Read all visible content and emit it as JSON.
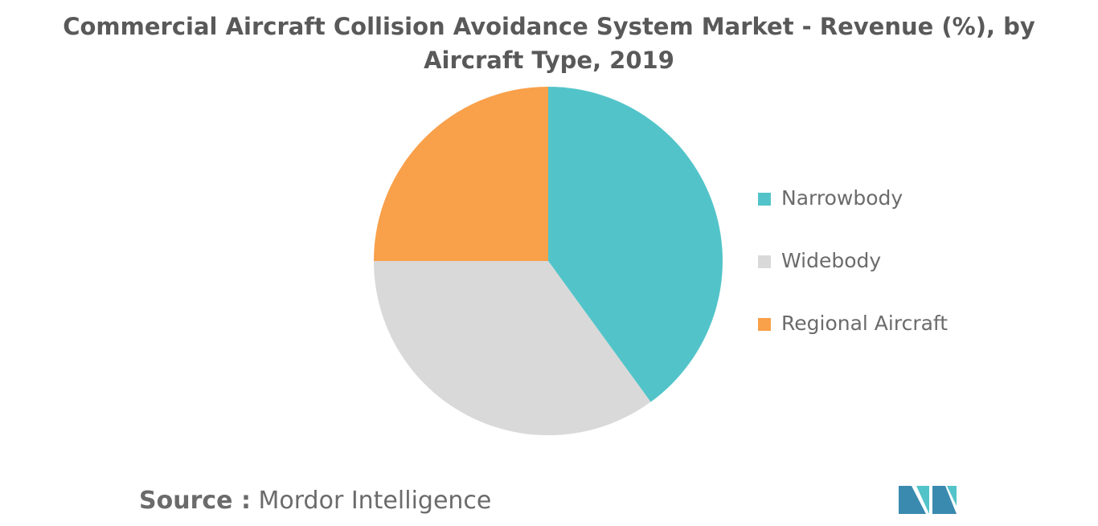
{
  "chart_data": {
    "type": "pie",
    "title": "Commercial Aircraft Collision Avoidance System Market - Revenue (%), by Aircraft Type, 2019",
    "series": [
      {
        "name": "Narrowbody",
        "color": "#52c4c9",
        "values": [
          40
        ]
      },
      {
        "name": "Widebody",
        "color": "#d9d9d9",
        "values": [
          35
        ]
      },
      {
        "name": "Regional Aircraft",
        "color": "#f9a04a",
        "values": [
          25
        ]
      }
    ],
    "legend": "right"
  },
  "footer": {
    "source_label": "Source :",
    "source": "Mordor Intelligence"
  }
}
